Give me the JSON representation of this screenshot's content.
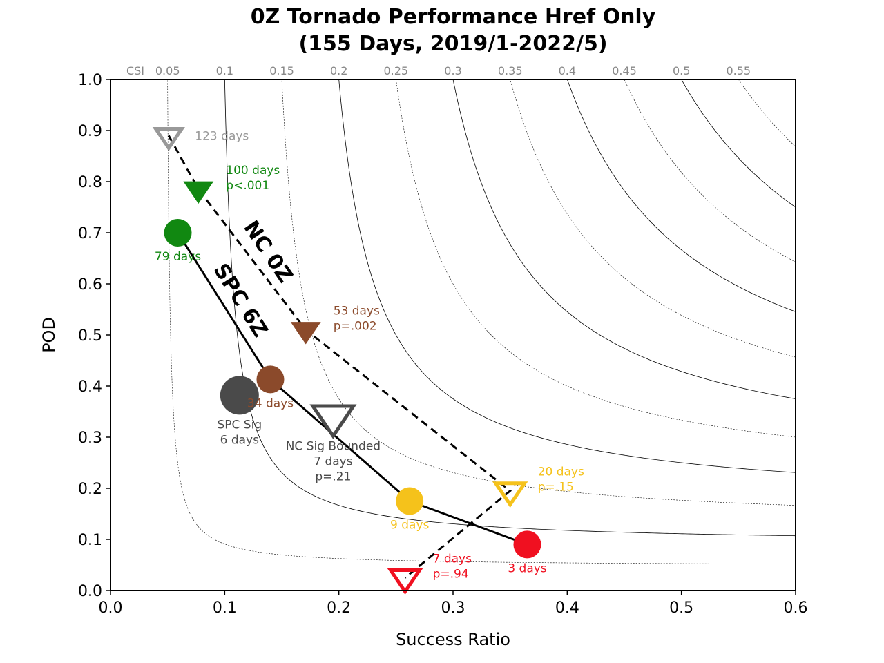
{
  "chart_data": {
    "type": "scatter",
    "title_line1": "0Z Tornado Performance Href Only",
    "title_line2": "(155 Days, 2019/1-2022/5)",
    "xlabel": "Success Ratio",
    "ylabel": "POD",
    "xlim": [
      0.0,
      0.6
    ],
    "ylim": [
      0.0,
      1.0
    ],
    "xticks": [
      "0.0",
      "0.1",
      "0.2",
      "0.3",
      "0.4",
      "0.5",
      "0.6"
    ],
    "yticks": [
      "0.0",
      "0.1",
      "0.2",
      "0.3",
      "0.4",
      "0.5",
      "0.6",
      "0.7",
      "0.8",
      "0.9",
      "1.0"
    ],
    "csi_axis_label": "CSI",
    "csi_values": [
      0.05,
      0.1,
      0.15,
      0.2,
      0.25,
      0.3,
      0.35,
      0.4,
      0.45,
      0.5,
      0.55
    ],
    "csi_tick_labels": [
      "0.05",
      "0.1",
      "0.15",
      "0.2",
      "0.25",
      "0.3",
      "0.35",
      "0.4",
      "0.45",
      "0.5",
      "0.55"
    ],
    "lines": [
      {
        "name": "NC 0Z",
        "style": "dashed",
        "x": [
          0.051,
          0.077,
          0.171,
          0.35,
          0.258
        ],
        "y": [
          0.89,
          0.785,
          0.51,
          0.195,
          0.025
        ]
      },
      {
        "name": "SPC 6Z",
        "style": "solid",
        "x": [
          0.059,
          0.14,
          0.262,
          0.365
        ],
        "y": [
          0.7,
          0.413,
          0.175,
          0.09
        ]
      }
    ],
    "points": [
      {
        "marker": "triangle-down-open",
        "color": "#999999",
        "size": 18,
        "x": 0.051,
        "y": 0.89,
        "label_lines": [
          "123 days"
        ],
        "label_pos": "right"
      },
      {
        "marker": "triangle-down",
        "color": "#118811",
        "size": 20,
        "x": 0.077,
        "y": 0.785,
        "label_lines": [
          "100 days",
          "p<.001"
        ],
        "label_pos": "right"
      },
      {
        "marker": "circle",
        "color": "#118811",
        "size": 20,
        "x": 0.059,
        "y": 0.7,
        "label_lines": [
          "79 days"
        ],
        "label_pos": "below"
      },
      {
        "marker": "triangle-down",
        "color": "#8b4a2b",
        "size": 20,
        "x": 0.171,
        "y": 0.51,
        "label_lines": [
          "53 days",
          "p=.002"
        ],
        "label_pos": "right"
      },
      {
        "marker": "circle",
        "color": "#8b4a2b",
        "size": 20,
        "x": 0.14,
        "y": 0.413,
        "label_lines": [
          "34 days"
        ],
        "label_pos": "below"
      },
      {
        "marker": "circle",
        "color": "#4a4a4a",
        "size": 28,
        "x": 0.113,
        "y": 0.382,
        "label_lines": [
          "SPC Sig",
          "6 days"
        ],
        "label_pos": "below"
      },
      {
        "marker": "triangle-down-open",
        "color": "#4a4a4a",
        "size": 28,
        "x": 0.195,
        "y": 0.34,
        "label_lines": [
          "NC Sig Bounded",
          "7 days",
          "p=.21"
        ],
        "label_pos": "below"
      },
      {
        "marker": "triangle-down-open",
        "color": "#f5c21b",
        "size": 20,
        "x": 0.35,
        "y": 0.195,
        "label_lines": [
          "20 days",
          "p=.15"
        ],
        "label_pos": "right"
      },
      {
        "marker": "circle",
        "color": "#f5c21b",
        "size": 20,
        "x": 0.262,
        "y": 0.175,
        "label_lines": [
          "9 days"
        ],
        "label_pos": "below"
      },
      {
        "marker": "circle",
        "color": "#f01020",
        "size": 20,
        "x": 0.365,
        "y": 0.09,
        "label_lines": [
          "3 days"
        ],
        "label_pos": "below"
      },
      {
        "marker": "triangle-down-open",
        "color": "#f01020",
        "size": 20,
        "x": 0.258,
        "y": 0.025,
        "label_lines": [
          "7 days",
          "p=.94"
        ],
        "label_pos": "right"
      }
    ]
  }
}
